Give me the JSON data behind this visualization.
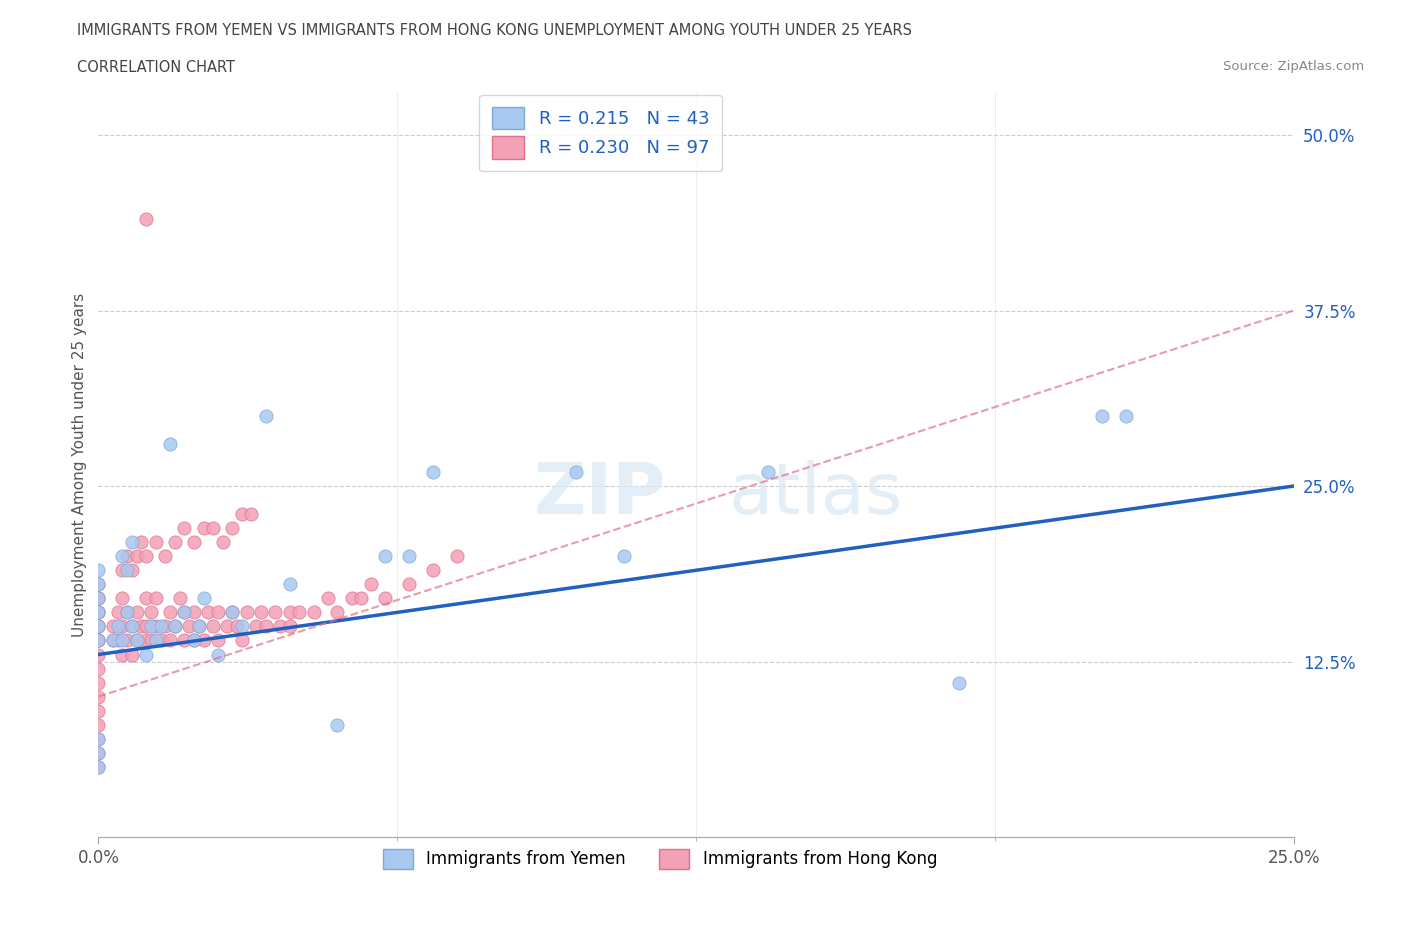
{
  "title_line1": "IMMIGRANTS FROM YEMEN VS IMMIGRANTS FROM HONG KONG UNEMPLOYMENT AMONG YOUTH UNDER 25 YEARS",
  "title_line2": "CORRELATION CHART",
  "source_text": "Source: ZipAtlas.com",
  "ylabel": "Unemployment Among Youth under 25 years",
  "xlim": [
    0.0,
    0.25
  ],
  "ylim": [
    0.0,
    0.53
  ],
  "yticks": [
    0.0,
    0.125,
    0.25,
    0.375,
    0.5
  ],
  "ytick_labels": [
    "",
    "12.5%",
    "25.0%",
    "37.5%",
    "50.0%"
  ],
  "xticks": [
    0.0,
    0.25
  ],
  "xtick_labels": [
    "0.0%",
    "25.0%"
  ],
  "watermark_zip": "ZIP",
  "watermark_atlas": "atlas",
  "legend_r_yemen": "0.215",
  "legend_n_yemen": "43",
  "legend_r_hk": "0.230",
  "legend_n_hk": "97",
  "color_yemen": "#a8c8f0",
  "color_hk": "#f4a0b5",
  "edge_yemen": "#7aaad8",
  "edge_hk": "#e07090",
  "line_color_yemen": "#2060c0",
  "line_color_hk": "#e07090",
  "background_color": "#ffffff",
  "legend_text_color": "#2060c0",
  "ytick_color": "#2060c0",
  "yemen_x": [
    0.0,
    0.0,
    0.0,
    0.0,
    0.0,
    0.0,
    0.0,
    0.0,
    0.0,
    0.003,
    0.004,
    0.005,
    0.006,
    0.007,
    0.008,
    0.01,
    0.011,
    0.012,
    0.013,
    0.015,
    0.016,
    0.018,
    0.02,
    0.021,
    0.022,
    0.025,
    0.028,
    0.03,
    0.035,
    0.04,
    0.05,
    0.06,
    0.065,
    0.07,
    0.1,
    0.11,
    0.14,
    0.18,
    0.21,
    0.215,
    0.005,
    0.006,
    0.007
  ],
  "yemen_y": [
    0.14,
    0.15,
    0.16,
    0.17,
    0.18,
    0.19,
    0.05,
    0.06,
    0.07,
    0.14,
    0.15,
    0.14,
    0.16,
    0.15,
    0.14,
    0.13,
    0.15,
    0.14,
    0.15,
    0.28,
    0.15,
    0.16,
    0.14,
    0.15,
    0.17,
    0.13,
    0.16,
    0.15,
    0.3,
    0.18,
    0.08,
    0.2,
    0.2,
    0.26,
    0.26,
    0.2,
    0.26,
    0.11,
    0.3,
    0.3,
    0.2,
    0.19,
    0.21
  ],
  "hk_x": [
    0.0,
    0.0,
    0.0,
    0.0,
    0.0,
    0.0,
    0.0,
    0.0,
    0.0,
    0.0,
    0.0,
    0.0,
    0.0,
    0.0,
    0.0,
    0.0,
    0.0,
    0.0,
    0.003,
    0.003,
    0.004,
    0.004,
    0.005,
    0.005,
    0.005,
    0.006,
    0.006,
    0.007,
    0.007,
    0.008,
    0.008,
    0.009,
    0.01,
    0.01,
    0.01,
    0.011,
    0.011,
    0.012,
    0.012,
    0.013,
    0.014,
    0.015,
    0.015,
    0.016,
    0.017,
    0.018,
    0.018,
    0.019,
    0.02,
    0.02,
    0.021,
    0.022,
    0.023,
    0.024,
    0.025,
    0.025,
    0.027,
    0.028,
    0.029,
    0.03,
    0.031,
    0.033,
    0.034,
    0.035,
    0.037,
    0.038,
    0.04,
    0.04,
    0.042,
    0.045,
    0.048,
    0.05,
    0.053,
    0.055,
    0.057,
    0.06,
    0.065,
    0.07,
    0.075,
    0.01,
    0.005,
    0.006,
    0.007,
    0.008,
    0.009,
    0.01,
    0.012,
    0.014,
    0.016,
    0.018,
    0.02,
    0.022,
    0.024,
    0.026,
    0.028,
    0.03,
    0.032
  ],
  "hk_y": [
    0.14,
    0.14,
    0.15,
    0.15,
    0.16,
    0.16,
    0.17,
    0.17,
    0.18,
    0.05,
    0.06,
    0.07,
    0.08,
    0.09,
    0.1,
    0.11,
    0.12,
    0.13,
    0.14,
    0.15,
    0.14,
    0.16,
    0.13,
    0.15,
    0.17,
    0.14,
    0.16,
    0.13,
    0.15,
    0.14,
    0.16,
    0.15,
    0.14,
    0.15,
    0.17,
    0.14,
    0.16,
    0.15,
    0.17,
    0.14,
    0.15,
    0.14,
    0.16,
    0.15,
    0.17,
    0.14,
    0.16,
    0.15,
    0.14,
    0.16,
    0.15,
    0.14,
    0.16,
    0.15,
    0.14,
    0.16,
    0.15,
    0.16,
    0.15,
    0.14,
    0.16,
    0.15,
    0.16,
    0.15,
    0.16,
    0.15,
    0.15,
    0.16,
    0.16,
    0.16,
    0.17,
    0.16,
    0.17,
    0.17,
    0.18,
    0.17,
    0.18,
    0.19,
    0.2,
    0.44,
    0.19,
    0.2,
    0.19,
    0.2,
    0.21,
    0.2,
    0.21,
    0.2,
    0.21,
    0.22,
    0.21,
    0.22,
    0.22,
    0.21,
    0.22,
    0.23,
    0.23
  ],
  "yemen_line_x": [
    0.0,
    0.25
  ],
  "yemen_line_y": [
    0.13,
    0.25
  ],
  "hk_line_x": [
    0.0,
    0.25
  ],
  "hk_line_y": [
    0.1,
    0.375
  ]
}
